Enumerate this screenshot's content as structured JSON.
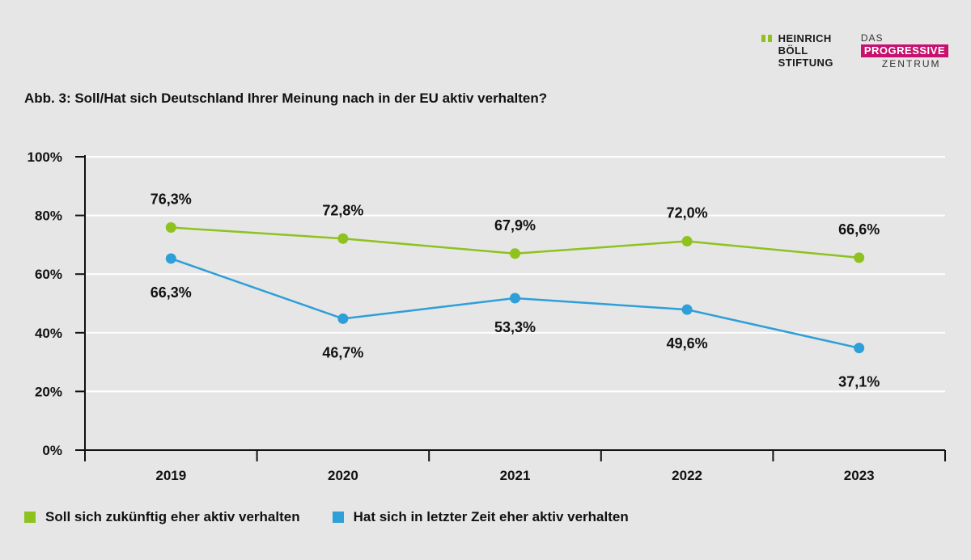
{
  "logos": {
    "hbs_lines": [
      "HEINRICH",
      "BÖLL",
      "STIFTUNG"
    ],
    "pz_top": "DAS",
    "pz_mid": "PROGRESSIVE",
    "pz_bot": "ZENTRUM"
  },
  "chart_data": {
    "type": "line",
    "title": "Abb. 3: Soll/Hat sich Deutschland Ihrer Meinung nach in der EU aktiv verhalten?",
    "categories": [
      "2019",
      "2020",
      "2021",
      "2022",
      "2023"
    ],
    "yticks": [
      "0%",
      "20%",
      "40%",
      "60%",
      "80%",
      "100%"
    ],
    "ylim": [
      0,
      100
    ],
    "grid": true,
    "legend_position": "bottom",
    "series": [
      {
        "name": "Soll sich zukünftig eher aktiv verhalten",
        "color": "#8ec21f",
        "values": [
          76.3,
          72.8,
          67.9,
          72.0,
          66.6
        ],
        "labels": [
          "76,3%",
          "72,8%",
          "67,9%",
          "72,0%",
          "66,6%"
        ],
        "plot_values": [
          75.9,
          72.1,
          67.0,
          71.2,
          65.6
        ]
      },
      {
        "name": "Hat sich in letzter Zeit eher aktiv verhalten",
        "color": "#2e9fd8",
        "values": [
          66.3,
          46.7,
          53.3,
          49.6,
          37.1
        ],
        "labels": [
          "66,3%",
          "46,7%",
          "53,3%",
          "49,6%",
          "37,1%"
        ],
        "plot_values": [
          65.3,
          44.8,
          51.8,
          47.9,
          34.8
        ]
      }
    ]
  }
}
